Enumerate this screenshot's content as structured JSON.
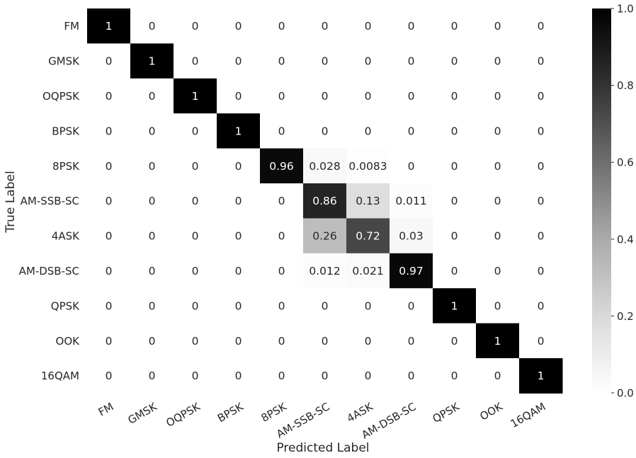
{
  "chart_data": {
    "type": "heatmap",
    "title": "",
    "xlabel": "Predicted Label",
    "ylabel": "True Label",
    "x_categories": [
      "FM",
      "GMSK",
      "OQPSK",
      "BPSK",
      "8PSK",
      "AM-SSB-SC",
      "4ASK",
      "AM-DSB-SC",
      "QPSK",
      "OOK",
      "16QAM"
    ],
    "y_categories": [
      "FM",
      "GMSK",
      "OQPSK",
      "BPSK",
      "8PSK",
      "AM-SSB-SC",
      "4ASK",
      "AM-DSB-SC",
      "QPSK",
      "OOK",
      "16QAM"
    ],
    "values": [
      [
        1,
        0,
        0,
        0,
        0,
        0,
        0,
        0,
        0,
        0,
        0
      ],
      [
        0,
        1,
        0,
        0,
        0,
        0,
        0,
        0,
        0,
        0,
        0
      ],
      [
        0,
        0,
        1,
        0,
        0,
        0,
        0,
        0,
        0,
        0,
        0
      ],
      [
        0,
        0,
        0,
        1,
        0,
        0,
        0,
        0,
        0,
        0,
        0
      ],
      [
        0,
        0,
        0,
        0,
        0.96,
        0.028,
        0.0083,
        0,
        0,
        0,
        0
      ],
      [
        0,
        0,
        0,
        0,
        0,
        0.86,
        0.13,
        0.011,
        0,
        0,
        0
      ],
      [
        0,
        0,
        0,
        0,
        0,
        0.26,
        0.72,
        0.03,
        0,
        0,
        0
      ],
      [
        0,
        0,
        0,
        0,
        0,
        0.012,
        0.021,
        0.97,
        0,
        0,
        0
      ],
      [
        0,
        0,
        0,
        0,
        0,
        0,
        0,
        0,
        1,
        0,
        0
      ],
      [
        0,
        0,
        0,
        0,
        0,
        0,
        0,
        0,
        0,
        1,
        0
      ],
      [
        0,
        0,
        0,
        0,
        0,
        0,
        0,
        0,
        0,
        0,
        1
      ]
    ],
    "colormap": "Greys",
    "vmin": 0,
    "vmax": 1,
    "colorbar_ticks": [
      "0.0",
      "0.2",
      "0.4",
      "0.6",
      "0.8",
      "1.0"
    ],
    "colorbar_tick_values": [
      0,
      0.2,
      0.4,
      0.6,
      0.8,
      1.0
    ],
    "annotate": true,
    "grid": false
  }
}
